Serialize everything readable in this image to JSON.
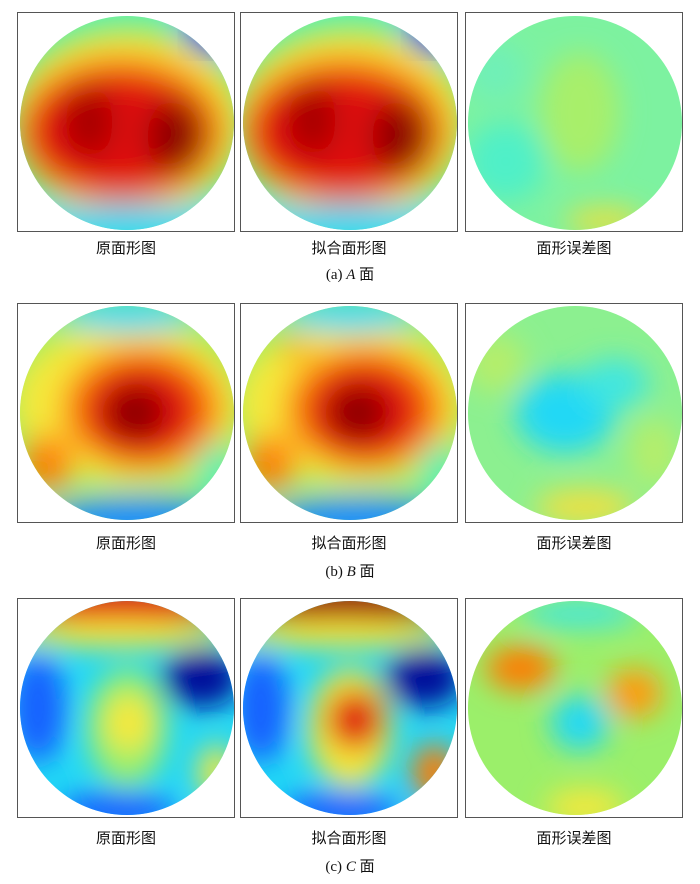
{
  "captions": {
    "original": "原面形图",
    "fitted": "拟合面形图",
    "error": "面形误差图"
  },
  "rows": [
    {
      "label_prefix": "(a) ",
      "label_letter": "A",
      "label_suffix": " 面"
    },
    {
      "label_prefix": "(b) ",
      "label_letter": "B",
      "label_suffix": " 面"
    },
    {
      "label_prefix": "(c) ",
      "label_letter": "C",
      "label_suffix": " 面"
    }
  ],
  "colors": {
    "dark_red": "#7a0000",
    "red": "#e01010",
    "orange": "#ff7a00",
    "yellow": "#f6e83a",
    "light_green": "#9bef6a",
    "green_cyan": "#4ff0b8",
    "cyan": "#22d8f5",
    "blue": "#1860ff",
    "dark_blue": "#000a9a"
  }
}
